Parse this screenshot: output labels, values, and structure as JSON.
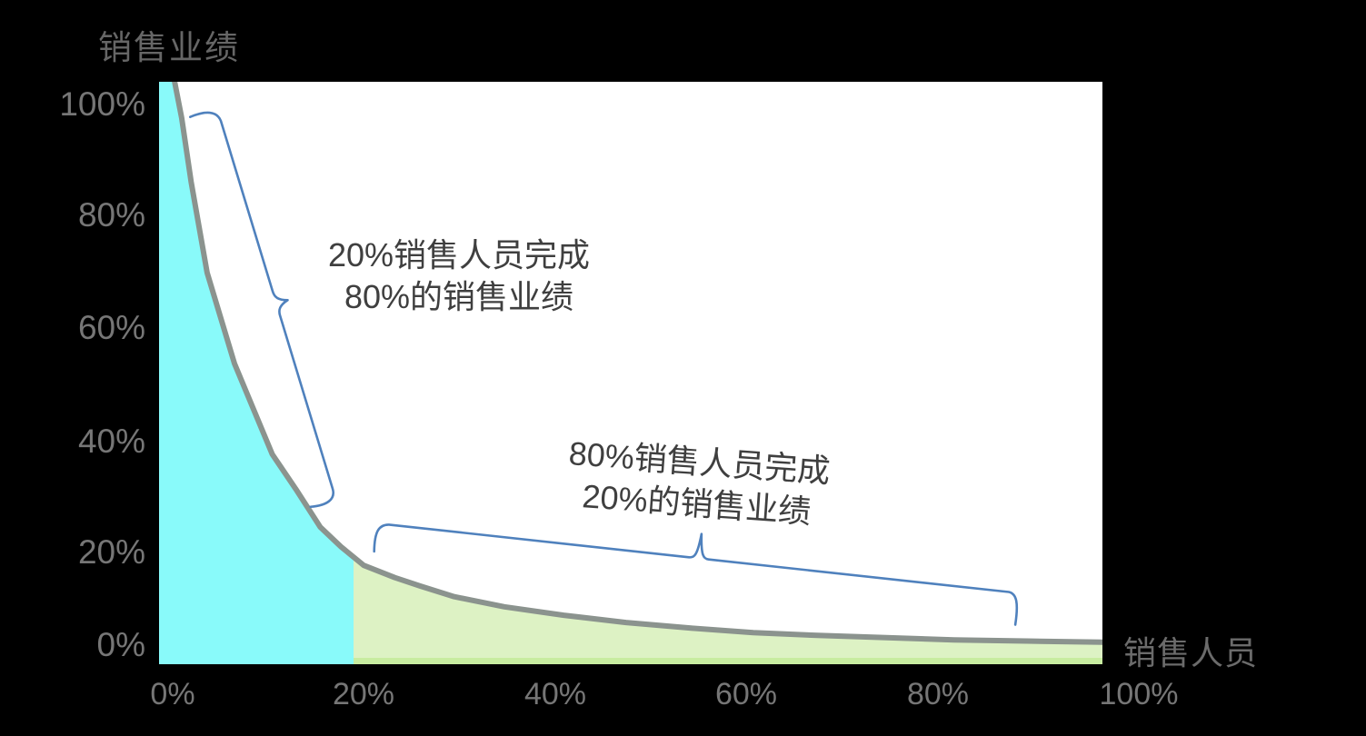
{
  "page": {
    "background": "#000000"
  },
  "colors": {
    "plot_background": "#ffffff",
    "cyan_region": "#89fafa",
    "green_region": "#ddf2c4",
    "green_region_edge": "#c8eca0",
    "curve_gray": "#8b938e",
    "brace_blue": "#4f81bd",
    "tick_text": "#767676",
    "title_text": "#666666",
    "annotation_text": "#3f3f3f"
  },
  "y_axis": {
    "title": "销售业绩",
    "ticks": [
      "100%",
      "80%",
      "60%",
      "40%",
      "20%",
      "0%"
    ]
  },
  "x_axis": {
    "title": "销售人员",
    "ticks": [
      "0%",
      "20%",
      "40%",
      "60%",
      "80%",
      "100%"
    ]
  },
  "annotations": {
    "top": {
      "line1": "20%销售人员完成",
      "line2": "80%的销售业绩"
    },
    "bottom": {
      "line1": "80%销售人员完成",
      "line2": "20%的销售业绩"
    }
  },
  "chart_data": {
    "type": "area",
    "title": "",
    "xlabel": "销售人员",
    "ylabel": "销售业绩",
    "xlim": [
      0,
      100
    ],
    "ylim": [
      0,
      100
    ],
    "x_tick_values": [
      0,
      20,
      40,
      60,
      80,
      100
    ],
    "y_tick_values": [
      0,
      20,
      40,
      60,
      80,
      100
    ],
    "grid": false,
    "legend": false,
    "description": "Pareto 80/20 curve: cumulative share of sales performance vs salespeople; curve approximates y% = 400/x%, clipped at 100%",
    "curve_points": [
      [
        1.6,
        104.5
      ],
      [
        2.4,
        97.6
      ],
      [
        3.4,
        86.2
      ],
      [
        5.1,
        70.0
      ],
      [
        8.0,
        53.8
      ],
      [
        12.0,
        37.6
      ],
      [
        14.5,
        31.4
      ],
      [
        17.1,
        24.6
      ],
      [
        19.3,
        21.1
      ],
      [
        21.7,
        17.8
      ],
      [
        25.0,
        15.6
      ],
      [
        27.7,
        14.1
      ],
      [
        31.3,
        12.2
      ],
      [
        36.6,
        10.4
      ],
      [
        42.9,
        8.9
      ],
      [
        49.5,
        7.6
      ],
      [
        56.4,
        6.6
      ],
      [
        63.0,
        5.8
      ],
      [
        69.8,
        5.3
      ],
      [
        77.1,
        4.9
      ],
      [
        84.3,
        4.5
      ],
      [
        92.0,
        4.3
      ],
      [
        100.0,
        4.1
      ]
    ],
    "key_point": [
      20,
      20
    ],
    "regions": [
      {
        "label": "20%销售人员完成80%的销售业绩",
        "x_range_pct": [
          0,
          20
        ],
        "color": "#89fafa"
      },
      {
        "label": "80%销售人员完成20%的销售业绩",
        "x_range_pct": [
          20,
          100
        ],
        "color": "#ddf2c4"
      }
    ]
  }
}
